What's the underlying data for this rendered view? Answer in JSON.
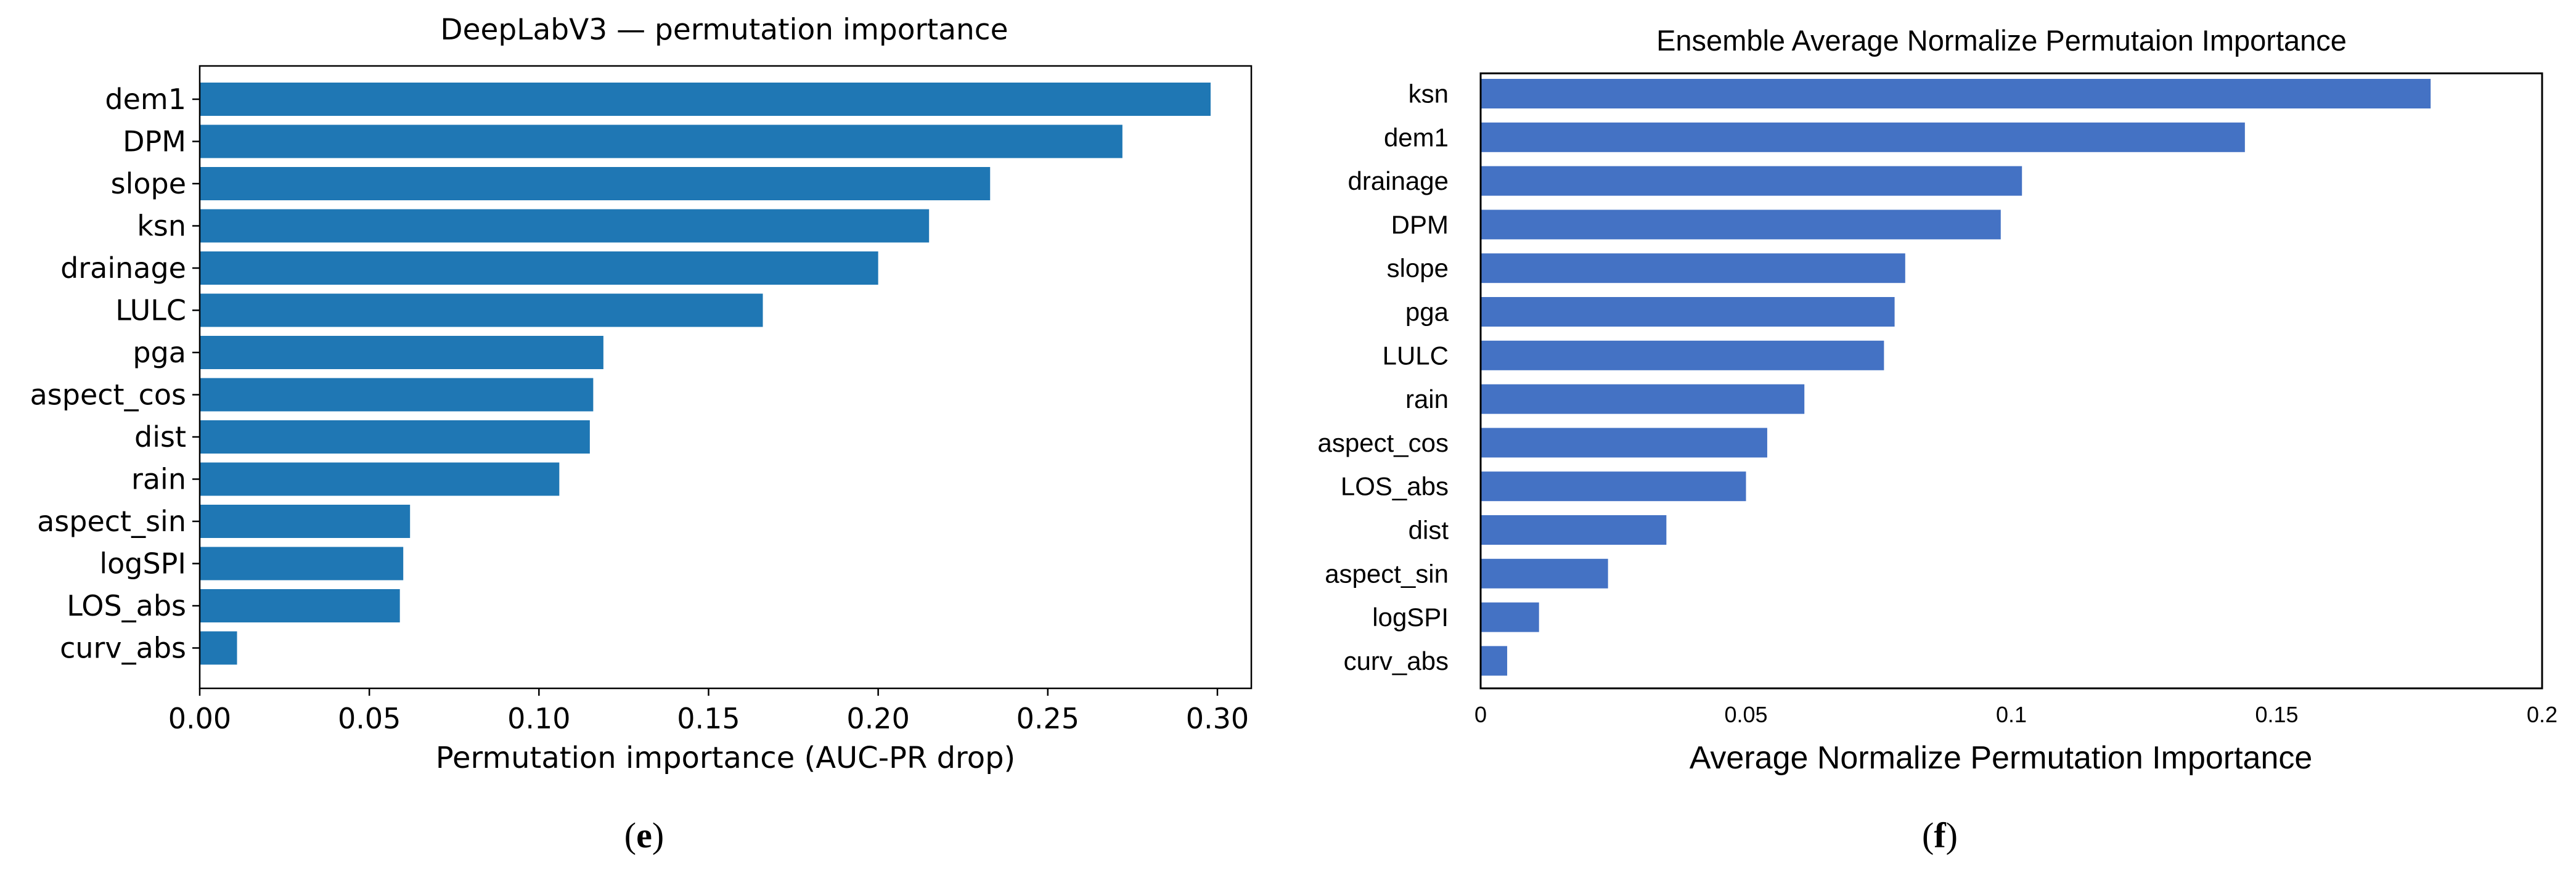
{
  "panels": [
    {
      "label_open": "(",
      "label_letter": "e",
      "label_close": ")"
    },
    {
      "label_open": "(",
      "label_letter": "f",
      "label_close": ")"
    }
  ],
  "chart_data": [
    {
      "type": "bar",
      "orientation": "horizontal",
      "title": "DeepLabV3 — permutation importance",
      "xlabel": "Permutation importance (AUC-PR drop)",
      "ylabel": "",
      "categories": [
        "dem1",
        "DPM",
        "slope",
        "ksn",
        "drainage",
        "LULC",
        "pga",
        "aspect_cos",
        "dist",
        "rain",
        "aspect_sin",
        "logSPI",
        "LOS_abs",
        "curv_abs"
      ],
      "values": [
        0.298,
        0.272,
        0.233,
        0.215,
        0.2,
        0.166,
        0.119,
        0.116,
        0.115,
        0.106,
        0.062,
        0.06,
        0.059,
        0.011
      ],
      "xlim": [
        0.0,
        0.31
      ],
      "xticks": [
        "0.00",
        "0.05",
        "0.10",
        "0.15",
        "0.20",
        "0.25",
        "0.30"
      ],
      "xtick_values": [
        0,
        0.05,
        0.1,
        0.15,
        0.2,
        0.25,
        0.3
      ],
      "grid": false,
      "color": "#1f77b4"
    },
    {
      "type": "bar",
      "orientation": "horizontal",
      "title": "Ensemble Average Normalize Permutaion Importance",
      "xlabel": "Average Normalize Permutation Importance",
      "ylabel": "",
      "categories": [
        "ksn",
        "dem1",
        "drainage",
        "DPM",
        "slope",
        "pga",
        "LULC",
        "rain",
        "aspect_cos",
        "LOS_abs",
        "dist",
        "aspect_sin",
        "logSPI",
        "curv_abs"
      ],
      "values": [
        0.179,
        0.144,
        0.102,
        0.098,
        0.08,
        0.078,
        0.076,
        0.061,
        0.054,
        0.05,
        0.035,
        0.024,
        0.011,
        0.005
      ],
      "xlim": [
        0,
        0.2
      ],
      "xticks": [
        "0",
        "0.05",
        "0.1",
        "0.15",
        "0.2"
      ],
      "xtick_values": [
        0,
        0.05,
        0.1,
        0.15,
        0.2
      ],
      "grid": false,
      "color": "#4472c4"
    }
  ]
}
